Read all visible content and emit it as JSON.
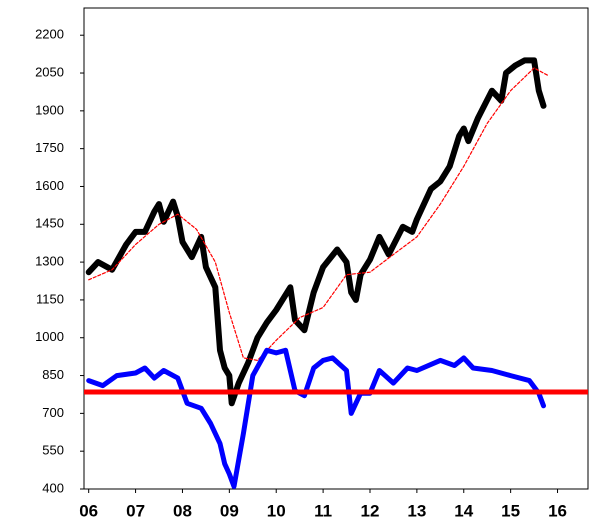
{
  "chart_data": {
    "type": "line",
    "xlim": [
      2005.9,
      2016.65
    ],
    "ylim": [
      400,
      2300
    ],
    "xticks": [
      {
        "value": 2006,
        "label": "06"
      },
      {
        "value": 2007,
        "label": "07"
      },
      {
        "value": 2008,
        "label": "08"
      },
      {
        "value": 2009,
        "label": "09"
      },
      {
        "value": 2010,
        "label": "10"
      },
      {
        "value": 2011,
        "label": "11"
      },
      {
        "value": 2012,
        "label": "12"
      },
      {
        "value": 2013,
        "label": "13"
      },
      {
        "value": 2014,
        "label": "14"
      },
      {
        "value": 2015,
        "label": "15"
      },
      {
        "value": 2016,
        "label": "16"
      }
    ],
    "yticks": [
      400,
      550,
      700,
      850,
      1000,
      1150,
      1300,
      1450,
      1600,
      1750,
      1900,
      2050,
      2200
    ],
    "hline": {
      "value": 785,
      "color": "#ff0000"
    },
    "series": [
      {
        "color": "#000000",
        "width": 6,
        "dash": false,
        "x": [
          2006.0,
          2006.2,
          2006.5,
          2006.8,
          2007.0,
          2007.2,
          2007.4,
          2007.5,
          2007.6,
          2007.8,
          2007.9,
          2008.0,
          2008.2,
          2008.4,
          2008.5,
          2008.7,
          2008.8,
          2008.9,
          2009.0,
          2009.05,
          2009.2,
          2009.4,
          2009.6,
          2009.8,
          2010.0,
          2010.3,
          2010.4,
          2010.6,
          2010.8,
          2011.0,
          2011.3,
          2011.5,
          2011.6,
          2011.7,
          2011.8,
          2012.0,
          2012.2,
          2012.4,
          2012.7,
          2012.9,
          2013.0,
          2013.3,
          2013.5,
          2013.7,
          2013.9,
          2014.0,
          2014.1,
          2014.3,
          2014.6,
          2014.8,
          2014.9,
          2015.1,
          2015.3,
          2015.5,
          2015.6,
          2015.7
        ],
        "values": [
          1260,
          1300,
          1270,
          1370,
          1420,
          1420,
          1500,
          1530,
          1460,
          1540,
          1480,
          1380,
          1320,
          1400,
          1280,
          1200,
          950,
          880,
          850,
          740,
          820,
          900,
          1000,
          1060,
          1110,
          1200,
          1070,
          1030,
          1180,
          1280,
          1350,
          1300,
          1180,
          1150,
          1250,
          1310,
          1400,
          1330,
          1440,
          1420,
          1470,
          1590,
          1620,
          1680,
          1800,
          1830,
          1780,
          1870,
          1980,
          1940,
          2050,
          2080,
          2100,
          2100,
          1980,
          1920
        ]
      },
      {
        "color": "#ff0000",
        "width": 1.2,
        "dash": true,
        "x": [
          2006.0,
          2006.5,
          2007.0,
          2007.5,
          2007.9,
          2008.3,
          2008.7,
          2009.0,
          2009.3,
          2009.6,
          2010.0,
          2010.5,
          2011.0,
          2011.5,
          2012.0,
          2012.5,
          2013.0,
          2013.5,
          2014.0,
          2014.5,
          2015.0,
          2015.5,
          2015.8
        ],
        "values": [
          1230,
          1270,
          1370,
          1450,
          1490,
          1430,
          1300,
          1100,
          920,
          910,
          990,
          1080,
          1120,
          1250,
          1260,
          1330,
          1400,
          1530,
          1680,
          1850,
          1980,
          2070,
          2040
        ]
      },
      {
        "color": "#0000ff",
        "width": 5,
        "dash": false,
        "x": [
          2006.0,
          2006.3,
          2006.6,
          2007.0,
          2007.2,
          2007.4,
          2007.6,
          2007.9,
          2008.1,
          2008.4,
          2008.6,
          2008.8,
          2008.9,
          2009.0,
          2009.1,
          2009.3,
          2009.5,
          2009.8,
          2010.0,
          2010.2,
          2010.4,
          2010.6,
          2010.8,
          2011.0,
          2011.2,
          2011.5,
          2011.6,
          2011.8,
          2012.0,
          2012.2,
          2012.5,
          2012.8,
          2013.0,
          2013.5,
          2013.8,
          2014.0,
          2014.2,
          2014.6,
          2015.0,
          2015.4,
          2015.6,
          2015.7
        ],
        "values": [
          830,
          810,
          850,
          860,
          880,
          840,
          870,
          840,
          740,
          720,
          660,
          580,
          500,
          460,
          410,
          620,
          850,
          950,
          940,
          950,
          790,
          770,
          880,
          910,
          920,
          870,
          700,
          780,
          780,
          870,
          820,
          880,
          870,
          910,
          890,
          920,
          880,
          870,
          850,
          830,
          780,
          730
        ]
      }
    ]
  }
}
